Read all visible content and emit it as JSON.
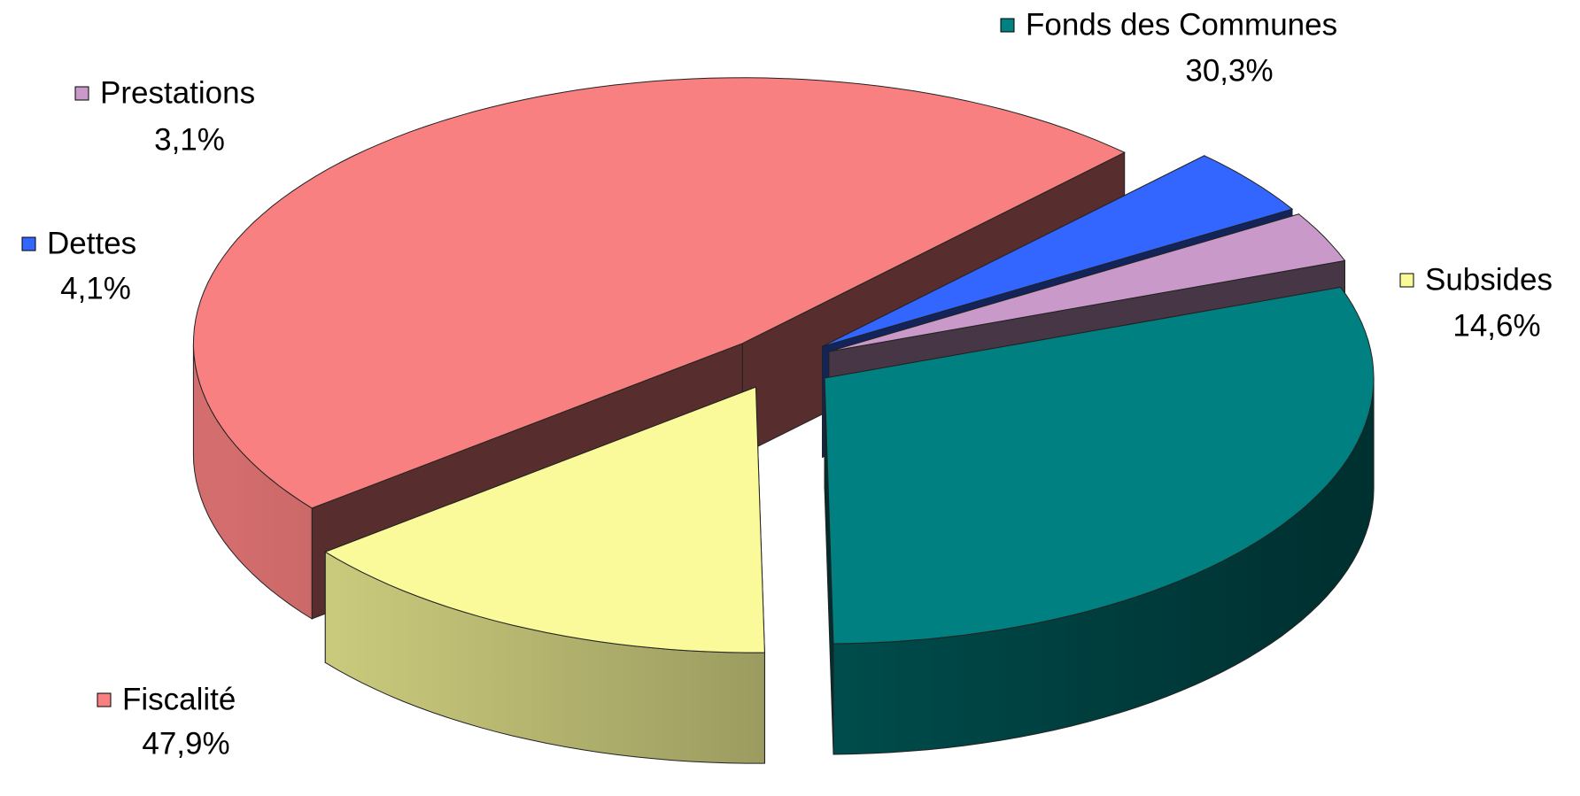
{
  "chart_data": {
    "type": "pie",
    "categories": [
      "Fonds des Communes",
      "Subsides",
      "Fiscalité",
      "Dettes",
      "Prestations"
    ],
    "values": [
      30.3,
      14.6,
      47.9,
      4.1,
      3.1
    ],
    "value_labels": [
      "30,3%",
      "14,6%",
      "47,9%",
      "4,1%",
      "3,1%"
    ],
    "colors": [
      "#008080",
      "#fafa9a",
      "#f98080",
      "#3366ff",
      "#c999c9"
    ]
  }
}
